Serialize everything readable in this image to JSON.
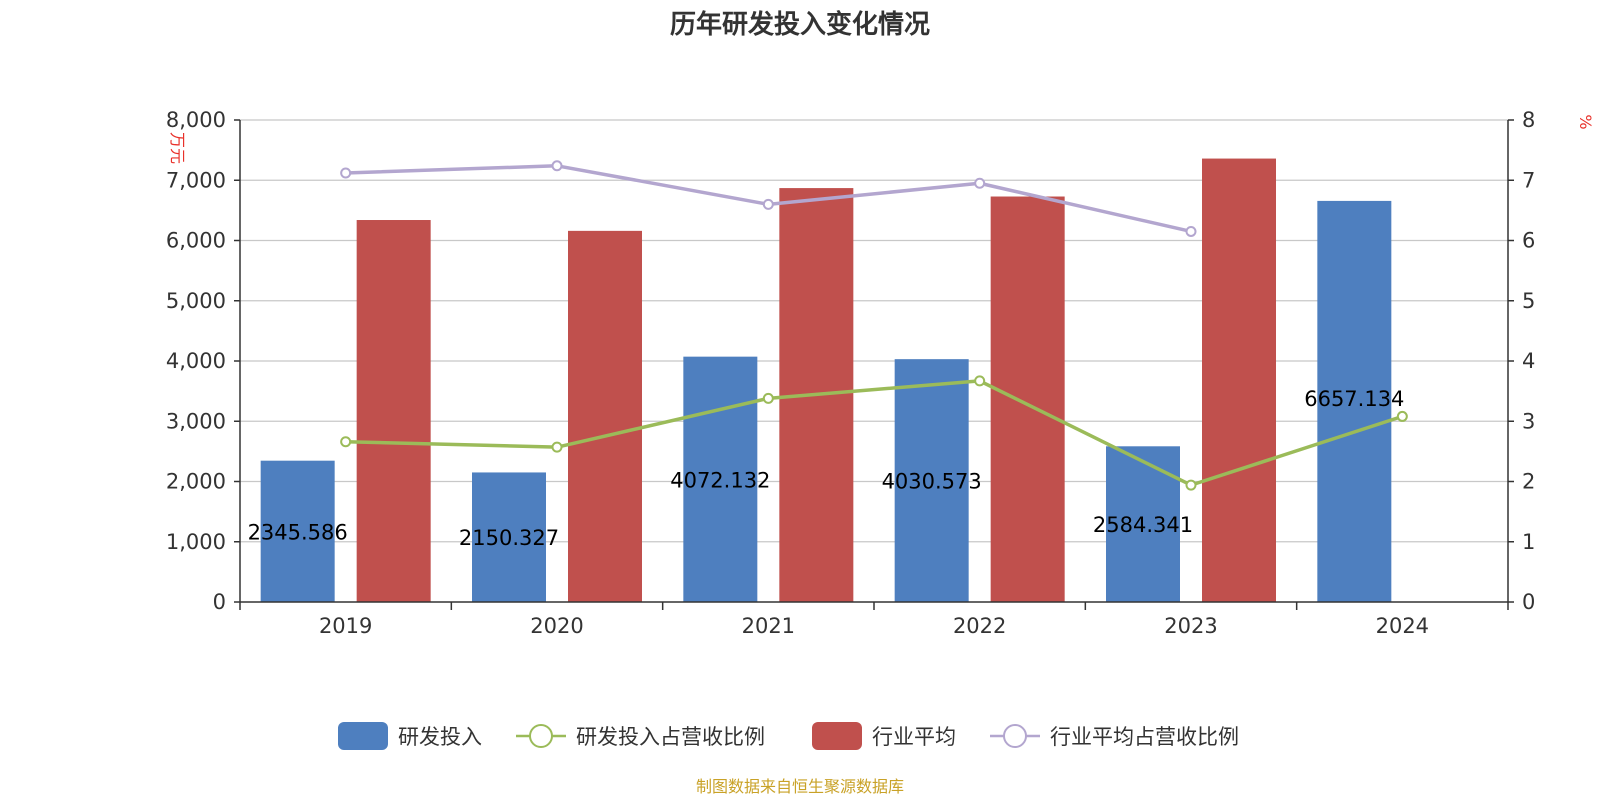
{
  "chart_data": {
    "type": "bar",
    "title": "历年研发投入变化情况",
    "categories": [
      "2019",
      "2020",
      "2021",
      "2022",
      "2023",
      "2024"
    ],
    "y_left": {
      "unit": "万元",
      "min": 0,
      "max": 8000,
      "ticks": [
        "0",
        "1,000",
        "2,000",
        "3,000",
        "4,000",
        "5,000",
        "6,000",
        "7,000",
        "8,000"
      ]
    },
    "y_right": {
      "unit": "%",
      "min": 0,
      "max": 8,
      "ticks": [
        "0",
        "1",
        "2",
        "3",
        "4",
        "5",
        "6",
        "7",
        "8"
      ]
    },
    "grid": true,
    "legend_position": "bottom",
    "series": [
      {
        "name": "研发投入",
        "type": "bar",
        "axis": "left",
        "color": "#4e7fbf",
        "values": [
          2345.586,
          2150.327,
          4072.132,
          4030.573,
          2584.341,
          6657.134
        ],
        "labels": [
          "2345.586",
          "2150.327",
          "4072.132",
          "4030.573",
          "2584.341",
          "6657.134"
        ]
      },
      {
        "name": "研发投入占营收比例",
        "type": "line",
        "axis": "right",
        "color": "#9bbb59",
        "values": [
          2.66,
          2.57,
          3.38,
          3.67,
          1.94,
          3.08
        ]
      },
      {
        "name": "行业平均",
        "type": "bar",
        "axis": "left",
        "color": "#c0504d",
        "values": [
          6340,
          6160,
          6870,
          6730,
          7360,
          null
        ]
      },
      {
        "name": "行业平均占营收比例",
        "type": "line",
        "axis": "right",
        "color": "#b3a6cf",
        "values": [
          7.12,
          7.24,
          6.6,
          6.95,
          6.15,
          null
        ]
      }
    ]
  },
  "source_text": "制图数据来自恒生聚源数据库"
}
